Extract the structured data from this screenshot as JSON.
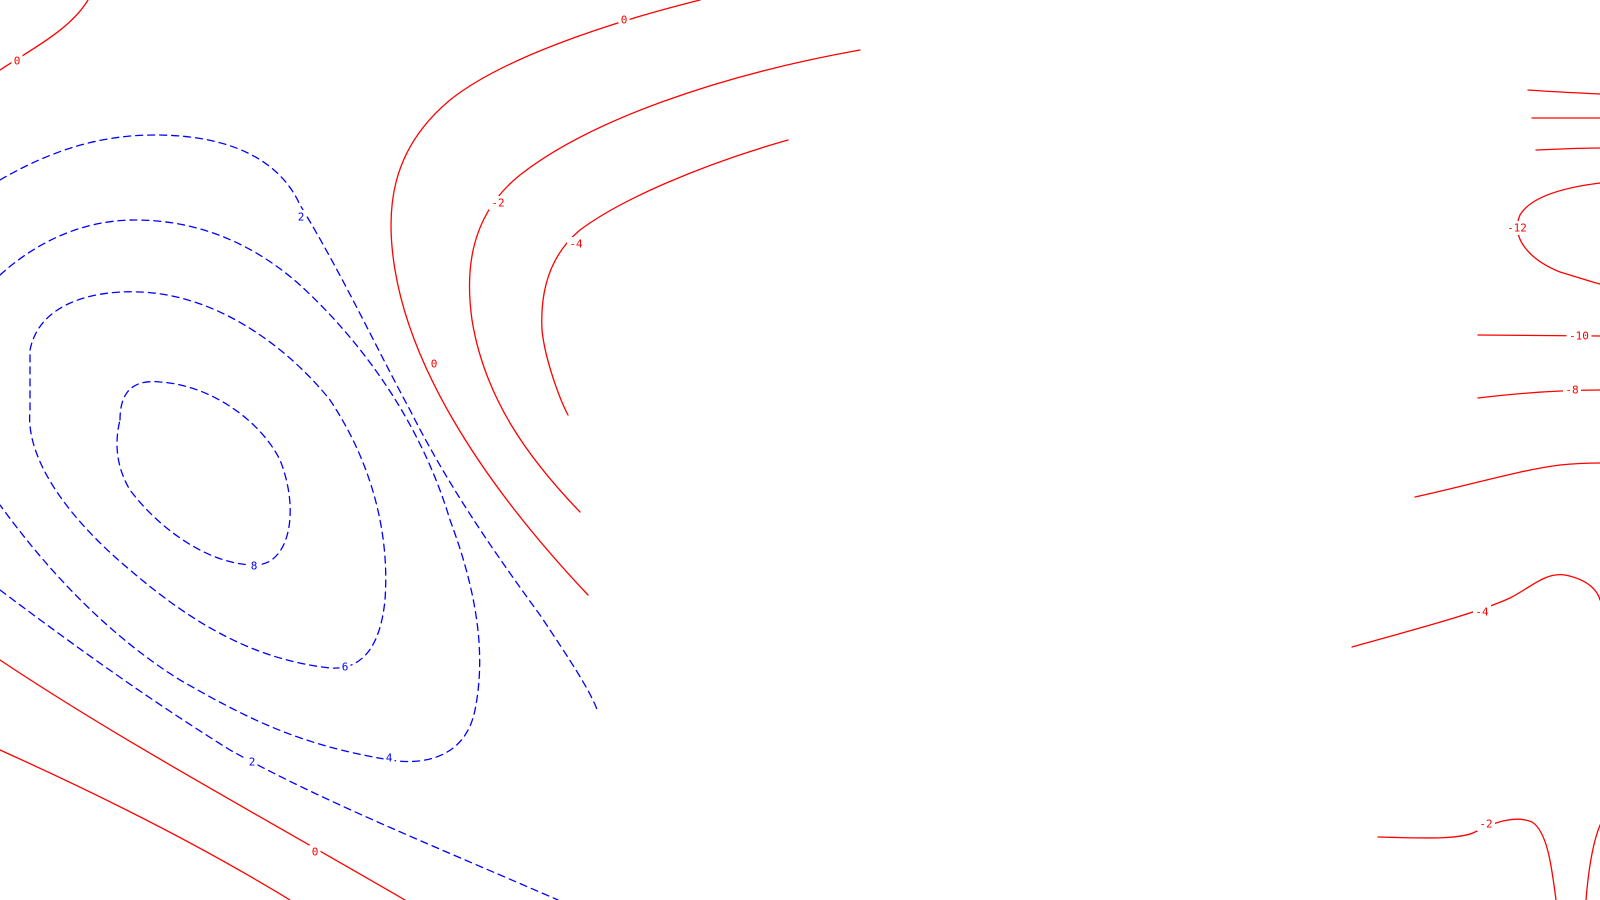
{
  "diagram": {
    "colors": {
      "positive": "#0000ff",
      "negative_or_zero": "#ff0000",
      "background": "#ffffff"
    },
    "line_styles": {
      "positive": "dashed",
      "negative_or_zero": "solid"
    },
    "contour_labels": [
      {
        "id": "lbl-0-a",
        "text": "0",
        "sign": "neg"
      },
      {
        "id": "lbl-0-b",
        "text": "0",
        "sign": "neg"
      },
      {
        "id": "lbl-2-pos-a",
        "text": "2",
        "sign": "pos"
      },
      {
        "id": "lbl-neg2-a",
        "text": "-2",
        "sign": "neg"
      },
      {
        "id": "lbl-neg4-a",
        "text": "-4",
        "sign": "neg"
      },
      {
        "id": "lbl-0-c",
        "text": "0",
        "sign": "neg"
      },
      {
        "id": "lbl-8-pos",
        "text": "8",
        "sign": "pos"
      },
      {
        "id": "lbl-6-pos",
        "text": "6",
        "sign": "pos"
      },
      {
        "id": "lbl-2-pos-b",
        "text": "2",
        "sign": "pos"
      },
      {
        "id": "lbl-4-pos",
        "text": "4",
        "sign": "pos"
      },
      {
        "id": "lbl-0-d",
        "text": "0",
        "sign": "neg"
      },
      {
        "id": "lbl-neg12",
        "text": "-12",
        "sign": "neg"
      },
      {
        "id": "lbl-neg10",
        "text": "-10",
        "sign": "neg"
      },
      {
        "id": "lbl-neg8",
        "text": "-8",
        "sign": "neg"
      },
      {
        "id": "lbl-neg4-b",
        "text": "-4",
        "sign": "neg"
      },
      {
        "id": "lbl-neg2-b",
        "text": "-2",
        "sign": "neg"
      }
    ]
  }
}
